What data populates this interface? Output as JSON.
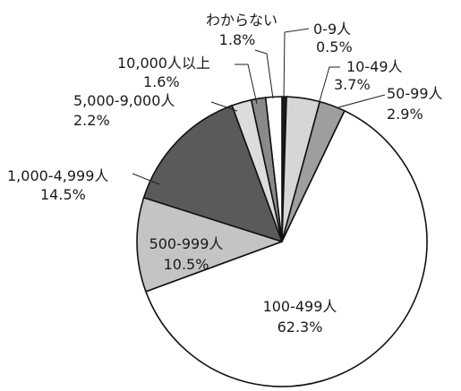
{
  "chart_data": {
    "type": "pie",
    "start": "top",
    "direction": "clockwise",
    "slices": [
      {
        "category": "0-9人",
        "value": 0.5,
        "label": "0.5%",
        "color": "#1a1a1a"
      },
      {
        "category": "10-49人",
        "value": 3.7,
        "label": "3.7%",
        "color": "#d6d6d6"
      },
      {
        "category": "50-99人",
        "value": 2.9,
        "label": "2.9%",
        "color": "#9e9e9e"
      },
      {
        "category": "100-499人",
        "value": 62.3,
        "label": "62.3%",
        "color": "#ffffff"
      },
      {
        "category": "500-999人",
        "value": 10.5,
        "label": "10.5%",
        "color": "#c4c4c4"
      },
      {
        "category": "1,000-4,999人",
        "value": 14.5,
        "label": "14.5%",
        "color": "#5a5a5a"
      },
      {
        "category": "5,000-9,000人",
        "value": 2.2,
        "label": "2.2%",
        "color": "#dcdcdc"
      },
      {
        "category": "10,000人以上",
        "value": 1.6,
        "label": "1.6%",
        "color": "#8a8a8a"
      },
      {
        "category": "わからない",
        "value": 1.8,
        "label": "1.8%",
        "color": "#ffffff"
      }
    ]
  }
}
